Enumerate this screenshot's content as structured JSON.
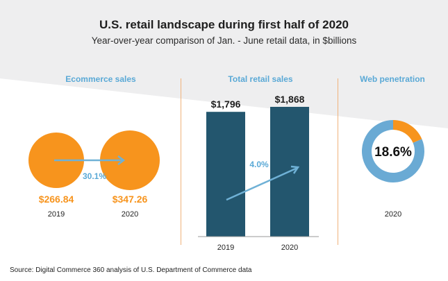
{
  "header": {
    "title": "U.S. retail landscape during first half of 2020",
    "subtitle": "Year-over-year comparison of Jan. - June retail data, in $billions"
  },
  "source": "Source: Digital Commerce 360 analysis of U.S. Department of Commerce data",
  "colors": {
    "orange": "#f7941d",
    "blue_label": "#5aa9d6",
    "navy": "#23566e",
    "arrow": "#6fb1d6",
    "donut_main": "#6aaad4",
    "background_band": "#eeeeef",
    "divider": "#f0b27a"
  },
  "chart_data": [
    {
      "type": "bubble",
      "title": "Ecommerce sales",
      "categories": [
        "2019",
        "2020"
      ],
      "values": [
        266.84,
        347.26
      ],
      "value_labels": [
        "$266.84",
        "$347.26"
      ],
      "change_label": "30.1%"
    },
    {
      "type": "bar",
      "title": "Total retail sales",
      "categories": [
        "2019",
        "2020"
      ],
      "values": [
        1796,
        1868
      ],
      "value_labels": [
        "$1,796",
        "$1,868"
      ],
      "change_label": "4.0%",
      "ylim": [
        0,
        1868
      ]
    },
    {
      "type": "pie",
      "title": "Web penetration",
      "values": [
        18.6,
        81.4
      ],
      "center_label": "18.6%",
      "category": "2020"
    }
  ]
}
